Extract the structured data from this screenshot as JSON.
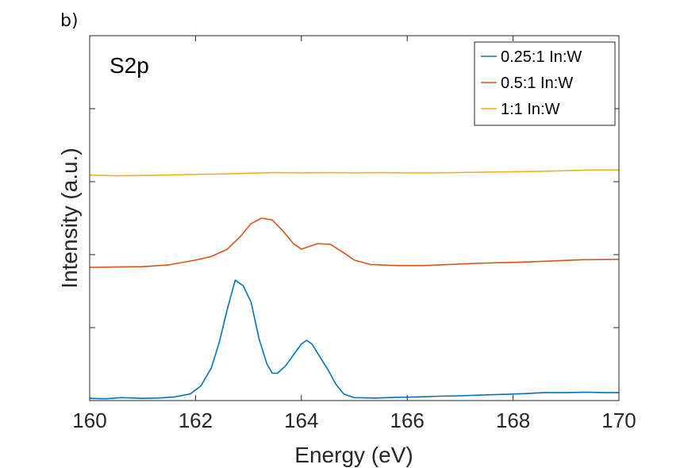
{
  "panel_label": "b)",
  "chart_data": {
    "type": "line",
    "annotation": "S2p",
    "xlabel": "Energy (eV)",
    "ylabel": "Intensity (a.u.)",
    "xlim": [
      160,
      170
    ],
    "ylim": [
      0,
      1
    ],
    "xticks": [
      160,
      162,
      164,
      166,
      168,
      170
    ],
    "xtick_labels": [
      "160",
      "162",
      "164",
      "166",
      "168",
      "170"
    ],
    "yticks": [
      0.2,
      0.4,
      0.6,
      0.8
    ],
    "grid": false,
    "legend_position": "top-right",
    "series": [
      {
        "name": "0.25:1 In:W",
        "color": "#0072BD",
        "points": [
          [
            160.0,
            0.006
          ],
          [
            160.3,
            0.005
          ],
          [
            160.6,
            0.008
          ],
          [
            161.0,
            0.006
          ],
          [
            161.3,
            0.007
          ],
          [
            161.6,
            0.01
          ],
          [
            161.9,
            0.018
          ],
          [
            162.1,
            0.04
          ],
          [
            162.3,
            0.09
          ],
          [
            162.45,
            0.16
          ],
          [
            162.6,
            0.25
          ],
          [
            162.75,
            0.33
          ],
          [
            162.9,
            0.315
          ],
          [
            163.05,
            0.27
          ],
          [
            163.2,
            0.17
          ],
          [
            163.35,
            0.1
          ],
          [
            163.45,
            0.075
          ],
          [
            163.55,
            0.075
          ],
          [
            163.7,
            0.095
          ],
          [
            163.85,
            0.125
          ],
          [
            164.0,
            0.155
          ],
          [
            164.1,
            0.165
          ],
          [
            164.2,
            0.155
          ],
          [
            164.35,
            0.12
          ],
          [
            164.5,
            0.085
          ],
          [
            164.65,
            0.045
          ],
          [
            164.8,
            0.018
          ],
          [
            165.0,
            0.008
          ],
          [
            165.4,
            0.007
          ],
          [
            165.8,
            0.009
          ],
          [
            166.2,
            0.01
          ],
          [
            166.6,
            0.012
          ],
          [
            167.0,
            0.013
          ],
          [
            167.4,
            0.015
          ],
          [
            167.8,
            0.017
          ],
          [
            168.2,
            0.019
          ],
          [
            168.6,
            0.022
          ],
          [
            169.0,
            0.022
          ],
          [
            169.4,
            0.023
          ],
          [
            169.7,
            0.022
          ],
          [
            170.0,
            0.022
          ]
        ]
      },
      {
        "name": "0.5:1 In:W",
        "color": "#D95319",
        "points": [
          [
            160.0,
            0.365
          ],
          [
            160.5,
            0.366
          ],
          [
            161.0,
            0.367
          ],
          [
            161.5,
            0.372
          ],
          [
            162.0,
            0.385
          ],
          [
            162.3,
            0.395
          ],
          [
            162.6,
            0.415
          ],
          [
            162.85,
            0.45
          ],
          [
            163.05,
            0.485
          ],
          [
            163.25,
            0.5
          ],
          [
            163.45,
            0.495
          ],
          [
            163.65,
            0.465
          ],
          [
            163.85,
            0.43
          ],
          [
            164.0,
            0.415
          ],
          [
            164.1,
            0.42
          ],
          [
            164.3,
            0.43
          ],
          [
            164.55,
            0.428
          ],
          [
            164.8,
            0.405
          ],
          [
            165.0,
            0.385
          ],
          [
            165.3,
            0.373
          ],
          [
            165.8,
            0.37
          ],
          [
            166.3,
            0.37
          ],
          [
            166.8,
            0.373
          ],
          [
            167.3,
            0.376
          ],
          [
            167.8,
            0.378
          ],
          [
            168.3,
            0.38
          ],
          [
            168.8,
            0.383
          ],
          [
            169.3,
            0.386
          ],
          [
            170.0,
            0.387
          ]
        ]
      },
      {
        "name": "1:1 In:W",
        "color": "#EDB120",
        "points": [
          [
            160.0,
            0.618
          ],
          [
            160.5,
            0.616
          ],
          [
            161.0,
            0.617
          ],
          [
            161.5,
            0.618
          ],
          [
            162.0,
            0.62
          ],
          [
            162.5,
            0.621
          ],
          [
            163.0,
            0.623
          ],
          [
            163.5,
            0.625
          ],
          [
            164.0,
            0.624
          ],
          [
            164.5,
            0.625
          ],
          [
            165.0,
            0.624
          ],
          [
            165.5,
            0.625
          ],
          [
            166.0,
            0.624
          ],
          [
            166.5,
            0.624
          ],
          [
            167.0,
            0.625
          ],
          [
            167.5,
            0.626
          ],
          [
            168.0,
            0.627
          ],
          [
            168.5,
            0.628
          ],
          [
            169.0,
            0.63
          ],
          [
            169.5,
            0.632
          ],
          [
            170.0,
            0.632
          ]
        ]
      }
    ]
  }
}
